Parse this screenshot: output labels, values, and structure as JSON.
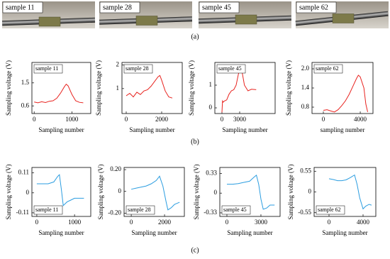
{
  "photos": [
    {
      "label": "sample 11"
    },
    {
      "label": "sample 28"
    },
    {
      "label": "sample 45"
    },
    {
      "label": "sample 62"
    }
  ],
  "panel_labels": [
    "(a)",
    "(b)",
    "(c)"
  ],
  "chart_data": [
    {
      "type": "line",
      "annotation": "sample 11",
      "y_label": "Sampling voltage (V)",
      "x_label": "Sampling number",
      "color": "#e8231f",
      "x": [
        0,
        100,
        200,
        300,
        400,
        500,
        600,
        700,
        800,
        850,
        900,
        1000,
        1100,
        1200,
        1300
      ],
      "values": [
        0.75,
        0.72,
        0.76,
        0.73,
        0.78,
        0.8,
        0.9,
        1.1,
        1.35,
        1.45,
        1.38,
        1.05,
        0.8,
        0.74,
        0.72
      ],
      "xlim": [
        -60,
        1500
      ],
      "xticks": [
        0,
        1000
      ],
      "ylim": [
        0.3,
        2.3
      ],
      "yticks": [
        0.6,
        1.5
      ]
    },
    {
      "type": "line",
      "annotation": "sample 28",
      "y_label": "Sampling voltage (V)",
      "x_label": "Sampling number",
      "color": "#e8231f",
      "x": [
        0,
        200,
        400,
        600,
        800,
        1000,
        1200,
        1400,
        1600,
        1800,
        1900,
        2000,
        2200,
        2400,
        2600
      ],
      "values": [
        0.7,
        0.8,
        0.65,
        0.85,
        0.75,
        0.9,
        0.95,
        1.1,
        1.3,
        1.5,
        1.55,
        1.35,
        0.9,
        0.65,
        0.6
      ],
      "xlim": [
        -240,
        3160
      ],
      "xticks": [
        0,
        2000
      ],
      "ylim": [
        -0.05,
        2.1
      ],
      "yticks": [
        1,
        2
      ]
    },
    {
      "type": "line",
      "annotation": "sample 45",
      "y_label": "Sampling voltage (V)",
      "x_label": "Sampling number",
      "color": "#e8231f",
      "x": [
        0,
        100,
        200,
        400,
        800,
        1200,
        1600,
        2000,
        2400,
        2800,
        3000,
        3400,
        3800,
        4400,
        5000,
        5800
      ],
      "values": [
        -0.2,
        0.3,
        0.25,
        0.3,
        0.35,
        0.6,
        0.75,
        0.8,
        1.0,
        1.5,
        1.62,
        1.6,
        1.0,
        0.75,
        0.82,
        0.8
      ],
      "xlim": [
        -1200,
        9000
      ],
      "xticks": [
        0,
        3000
      ],
      "ylim": [
        -0.25,
        2.0
      ],
      "yticks": [
        0,
        1
      ]
    },
    {
      "type": "line",
      "annotation": "sample 62",
      "y_label": "Sampling voltage (V)",
      "x_label": "sampling number",
      "color": "#e8231f",
      "x": [
        0,
        400,
        800,
        1200,
        1600,
        2000,
        2400,
        2800,
        3200,
        3600,
        3800,
        4000,
        4400,
        4600,
        4800
      ],
      "values": [
        0.7,
        0.72,
        0.68,
        0.65,
        0.72,
        0.85,
        1.0,
        1.2,
        1.45,
        1.7,
        1.8,
        1.75,
        1.4,
        0.9,
        0.65
      ],
      "xlim": [
        -1230,
        5380
      ],
      "xticks": [
        0,
        4000
      ],
      "ylim": [
        0.6,
        2.2
      ],
      "yticks": [
        0.8,
        1.4,
        {
          "value": 2,
          "label": "2.0"
        }
      ]
    },
    {
      "type": "line",
      "annotation": "sample 11",
      "y_label": "Sampling voltage (V)",
      "x_label": "Sampling number",
      "color": "#2b9de0",
      "x": [
        0,
        150,
        300,
        450,
        550,
        600,
        650,
        700,
        800,
        900,
        1000,
        1100,
        1250
      ],
      "values": [
        0.05,
        0.05,
        0.05,
        0.06,
        0.09,
        0.1,
        0.02,
        -0.07,
        -0.05,
        -0.04,
        -0.03,
        -0.03,
        -0.03
      ],
      "xlim": [
        -130,
        1430
      ],
      "xticks": [
        0,
        1000
      ],
      "ylim": [
        -0.13,
        0.14
      ],
      "yticks": [
        -0.11,
        0,
        0.11
      ]
    },
    {
      "type": "line",
      "annotation": "sample 28",
      "y_label": "Sampling voltage (V)",
      "x_label": "Sampling number",
      "color": "#2b9de0",
      "x": [
        0,
        300,
        600,
        900,
        1200,
        1500,
        1700,
        1900,
        2100,
        2200,
        2400,
        2600,
        2900
      ],
      "values": [
        0.02,
        0.03,
        0.04,
        0.05,
        0.07,
        0.1,
        0.14,
        0.05,
        -0.1,
        -0.17,
        -0.15,
        -0.12,
        -0.1
      ],
      "xlim": [
        -430,
        3190
      ],
      "xticks": [
        0,
        2000
      ],
      "ylim": [
        -0.23,
        0.22
      ],
      "yticks": [
        {
          "value": -0.2,
          "label": "-0.20"
        },
        0,
        {
          "value": 0.2,
          "label": "0.20"
        }
      ]
    },
    {
      "type": "line",
      "annotation": "sample 45",
      "y_label": "Sampling voltage (V)",
      "x_label": "Sampling number",
      "color": "#2b9de0",
      "x": [
        0,
        500,
        1000,
        1500,
        2000,
        2400,
        2600,
        2800,
        3000,
        3200,
        3500,
        3800,
        4200
      ],
      "values": [
        0.15,
        0.15,
        0.16,
        0.18,
        0.2,
        0.27,
        0.3,
        0.15,
        -0.1,
        -0.27,
        -0.25,
        -0.2,
        -0.2
      ],
      "xlim": [
        -625,
        4690
      ],
      "xticks": [
        0,
        3000
      ],
      "ylim": [
        -0.39,
        0.43
      ],
      "yticks": [
        -0.33,
        0,
        0.33
      ]
    },
    {
      "type": "line",
      "annotation": "sample 62",
      "y_label": "Sampling voltage (V)",
      "x_label": "Sampling number",
      "color": "#2b9de0",
      "x": [
        0,
        500,
        1000,
        1500,
        2000,
        2500,
        3000,
        3300,
        3600,
        4000,
        4300,
        4700,
        5000
      ],
      "values": [
        0.35,
        0.33,
        0.3,
        0.3,
        0.32,
        0.38,
        0.45,
        0.2,
        -0.15,
        -0.45,
        -0.38,
        -0.33,
        -0.35
      ],
      "xlim": [
        -1750,
        5500
      ],
      "xticks": [
        0,
        4000
      ],
      "ylim": [
        -0.65,
        0.65
      ],
      "yticks": [
        -0.55,
        0,
        0.55
      ]
    }
  ]
}
